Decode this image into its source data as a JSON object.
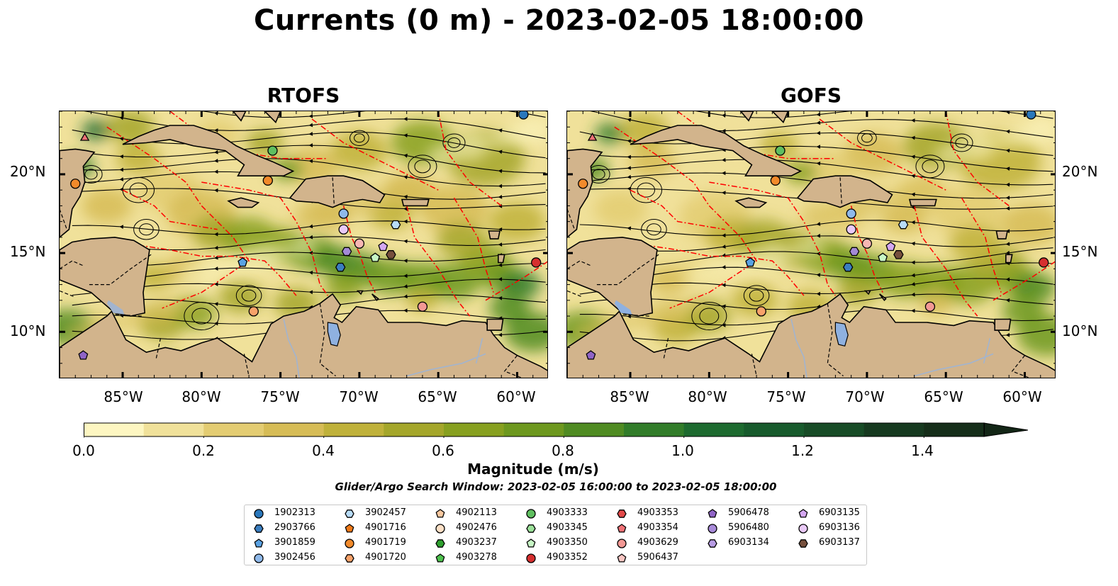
{
  "title": "Currents (0 m) - 2023-02-05 18:00:00",
  "panels": [
    {
      "name": "RTOFS",
      "markers": [
        {
          "lon": -87.4,
          "lat": 22.3,
          "shape": "tri",
          "color": "#f07277"
        },
        {
          "lon": -88.0,
          "lat": 19.4,
          "shape": "circle",
          "color": "#f28a2b"
        },
        {
          "lon": -75.5,
          "lat": 21.5,
          "shape": "circle",
          "color": "#5fbf60"
        },
        {
          "lon": -75.8,
          "lat": 19.6,
          "shape": "circle",
          "color": "#f28a2b"
        },
        {
          "lon": -71.0,
          "lat": 17.5,
          "shape": "circle",
          "color": "#8fb9ea"
        },
        {
          "lon": -71.0,
          "lat": 16.5,
          "shape": "circle",
          "color": "#e9c9f7"
        },
        {
          "lon": -67.7,
          "lat": 16.8,
          "shape": "hex",
          "color": "#b8dcf8"
        },
        {
          "lon": -70.0,
          "lat": 15.6,
          "shape": "circle",
          "color": "#f7b7b4"
        },
        {
          "lon": -68.5,
          "lat": 15.4,
          "shape": "pent",
          "color": "#d4a7f1"
        },
        {
          "lon": -70.8,
          "lat": 15.1,
          "shape": "hex",
          "color": "#a38ad6"
        },
        {
          "lon": -69.0,
          "lat": 14.7,
          "shape": "pent",
          "color": "#c7f5c5"
        },
        {
          "lon": -68.0,
          "lat": 14.9,
          "shape": "hex",
          "color": "#76503d"
        },
        {
          "lon": -71.2,
          "lat": 14.1,
          "shape": "hex",
          "color": "#3b7ec0"
        },
        {
          "lon": -77.4,
          "lat": 14.4,
          "shape": "pent",
          "color": "#5aa2e3"
        },
        {
          "lon": -58.8,
          "lat": 14.4,
          "shape": "circle",
          "color": "#d62f2f"
        },
        {
          "lon": -76.7,
          "lat": 11.3,
          "shape": "circle",
          "color": "#f8a26a"
        },
        {
          "lon": -66.0,
          "lat": 11.6,
          "shape": "circle",
          "color": "#f39894"
        },
        {
          "lon": -59.6,
          "lat": 23.8,
          "shape": "circle",
          "color": "#2a77bb"
        },
        {
          "lon": -87.5,
          "lat": 8.5,
          "shape": "pent",
          "color": "#9064c6"
        }
      ]
    },
    {
      "name": "GOFS",
      "markers": [
        {
          "lon": -87.4,
          "lat": 22.3,
          "shape": "tri",
          "color": "#f07277"
        },
        {
          "lon": -88.0,
          "lat": 19.4,
          "shape": "circle",
          "color": "#f28a2b"
        },
        {
          "lon": -75.5,
          "lat": 21.5,
          "shape": "circle",
          "color": "#5fbf60"
        },
        {
          "lon": -75.8,
          "lat": 19.6,
          "shape": "circle",
          "color": "#f28a2b"
        },
        {
          "lon": -71.0,
          "lat": 17.5,
          "shape": "circle",
          "color": "#8fb9ea"
        },
        {
          "lon": -71.0,
          "lat": 16.5,
          "shape": "circle",
          "color": "#e9c9f7"
        },
        {
          "lon": -67.7,
          "lat": 16.8,
          "shape": "hex",
          "color": "#b8dcf8"
        },
        {
          "lon": -70.0,
          "lat": 15.6,
          "shape": "circle",
          "color": "#f7b7b4"
        },
        {
          "lon": -68.5,
          "lat": 15.4,
          "shape": "pent",
          "color": "#d4a7f1"
        },
        {
          "lon": -70.8,
          "lat": 15.1,
          "shape": "hex",
          "color": "#a38ad6"
        },
        {
          "lon": -69.0,
          "lat": 14.7,
          "shape": "pent",
          "color": "#c7f5c5"
        },
        {
          "lon": -68.0,
          "lat": 14.9,
          "shape": "hex",
          "color": "#76503d"
        },
        {
          "lon": -71.2,
          "lat": 14.1,
          "shape": "hex",
          "color": "#3b7ec0"
        },
        {
          "lon": -77.4,
          "lat": 14.4,
          "shape": "pent",
          "color": "#5aa2e3"
        },
        {
          "lon": -58.8,
          "lat": 14.4,
          "shape": "circle",
          "color": "#d62f2f"
        },
        {
          "lon": -76.7,
          "lat": 11.3,
          "shape": "circle",
          "color": "#f8a26a"
        },
        {
          "lon": -66.0,
          "lat": 11.6,
          "shape": "circle",
          "color": "#f39894"
        },
        {
          "lon": -59.6,
          "lat": 23.8,
          "shape": "circle",
          "color": "#2a77bb"
        },
        {
          "lon": -87.5,
          "lat": 8.5,
          "shape": "pent",
          "color": "#9064c6"
        }
      ]
    }
  ],
  "extent": {
    "lon": [
      -89,
      -58
    ],
    "lat": [
      7,
      24
    ]
  },
  "lat_ticks": [
    {
      "value": 20,
      "label": "20°N"
    },
    {
      "value": 15,
      "label": "15°N"
    },
    {
      "value": 10,
      "label": "10°N"
    }
  ],
  "lon_ticks": [
    {
      "value": -85,
      "label": "85°W"
    },
    {
      "value": -80,
      "label": "80°W"
    },
    {
      "value": -75,
      "label": "75°W"
    },
    {
      "value": -70,
      "label": "70°W"
    },
    {
      "value": -65,
      "label": "65°W"
    },
    {
      "value": -60,
      "label": "60°W"
    }
  ],
  "colorbar": {
    "label": "Magnitude (m/s)",
    "range": [
      0,
      1.5
    ],
    "extend": "max",
    "ticks": [
      "0.0",
      "0.2",
      "0.4",
      "0.6",
      "0.8",
      "1.0",
      "1.2",
      "1.4"
    ],
    "colors": [
      "#fdf6c1",
      "#f0e19a",
      "#e3cc72",
      "#d6bc56",
      "#bfb13a",
      "#a4a62a",
      "#87a01f",
      "#6d981e",
      "#4f8b22",
      "#317c29",
      "#1d6a2f",
      "#175a2c",
      "#174b26",
      "#16391f",
      "#152d19",
      "#132616"
    ]
  },
  "colors": {
    "land": "#d2b48c",
    "water": "#a2b4cf",
    "eez": "#ff0000",
    "streamline": "#000000"
  },
  "search_window": "Glider/Argo Search Window: 2023-02-05 16:00:00 to 2023-02-05 18:00:00",
  "legend": [
    {
      "id": "1902313",
      "shape": "circle",
      "color": "#2a77bb"
    },
    {
      "id": "2903766",
      "shape": "hex",
      "color": "#3b7ec0"
    },
    {
      "id": "3901859",
      "shape": "pent",
      "color": "#5aa2e3"
    },
    {
      "id": "3902456",
      "shape": "circle",
      "color": "#8fb9ea"
    },
    {
      "id": "3902457",
      "shape": "hex",
      "color": "#b8dcf8"
    },
    {
      "id": "4901716",
      "shape": "pent",
      "color": "#f07a18"
    },
    {
      "id": "4901719",
      "shape": "circle",
      "color": "#f28a2b"
    },
    {
      "id": "4901720",
      "shape": "hex",
      "color": "#f8a26a"
    },
    {
      "id": "4902113",
      "shape": "pent",
      "color": "#f9c89f"
    },
    {
      "id": "4902476",
      "shape": "circle",
      "color": "#fde0c6"
    },
    {
      "id": "4903237",
      "shape": "hex",
      "color": "#2ea02e"
    },
    {
      "id": "4903278",
      "shape": "pent",
      "color": "#4ec24e"
    },
    {
      "id": "4903333",
      "shape": "circle",
      "color": "#5fbf60"
    },
    {
      "id": "4903345",
      "shape": "hex",
      "color": "#9ce19a"
    },
    {
      "id": "4903350",
      "shape": "pent",
      "color": "#c7f5c5"
    },
    {
      "id": "4903352",
      "shape": "circle",
      "color": "#d62f2f"
    },
    {
      "id": "4903353",
      "shape": "hex",
      "color": "#e34a4a"
    },
    {
      "id": "4903354",
      "shape": "pent",
      "color": "#f07277"
    },
    {
      "id": "4903629",
      "shape": "circle",
      "color": "#f39894"
    },
    {
      "id": "5906437",
      "shape": "pent",
      "color": "#f9c6c3"
    },
    {
      "id": "5906478",
      "shape": "pent",
      "color": "#9064c6"
    },
    {
      "id": "5906480",
      "shape": "circle",
      "color": "#a88ad9"
    },
    {
      "id": "6903134",
      "shape": "hex",
      "color": "#b79be3"
    },
    {
      "id": "6903135",
      "shape": "pent",
      "color": "#d4a7f1"
    },
    {
      "id": "6903136",
      "shape": "circle",
      "color": "#e9c9f7"
    },
    {
      "id": "6903137",
      "shape": "hex",
      "color": "#76503d"
    }
  ]
}
